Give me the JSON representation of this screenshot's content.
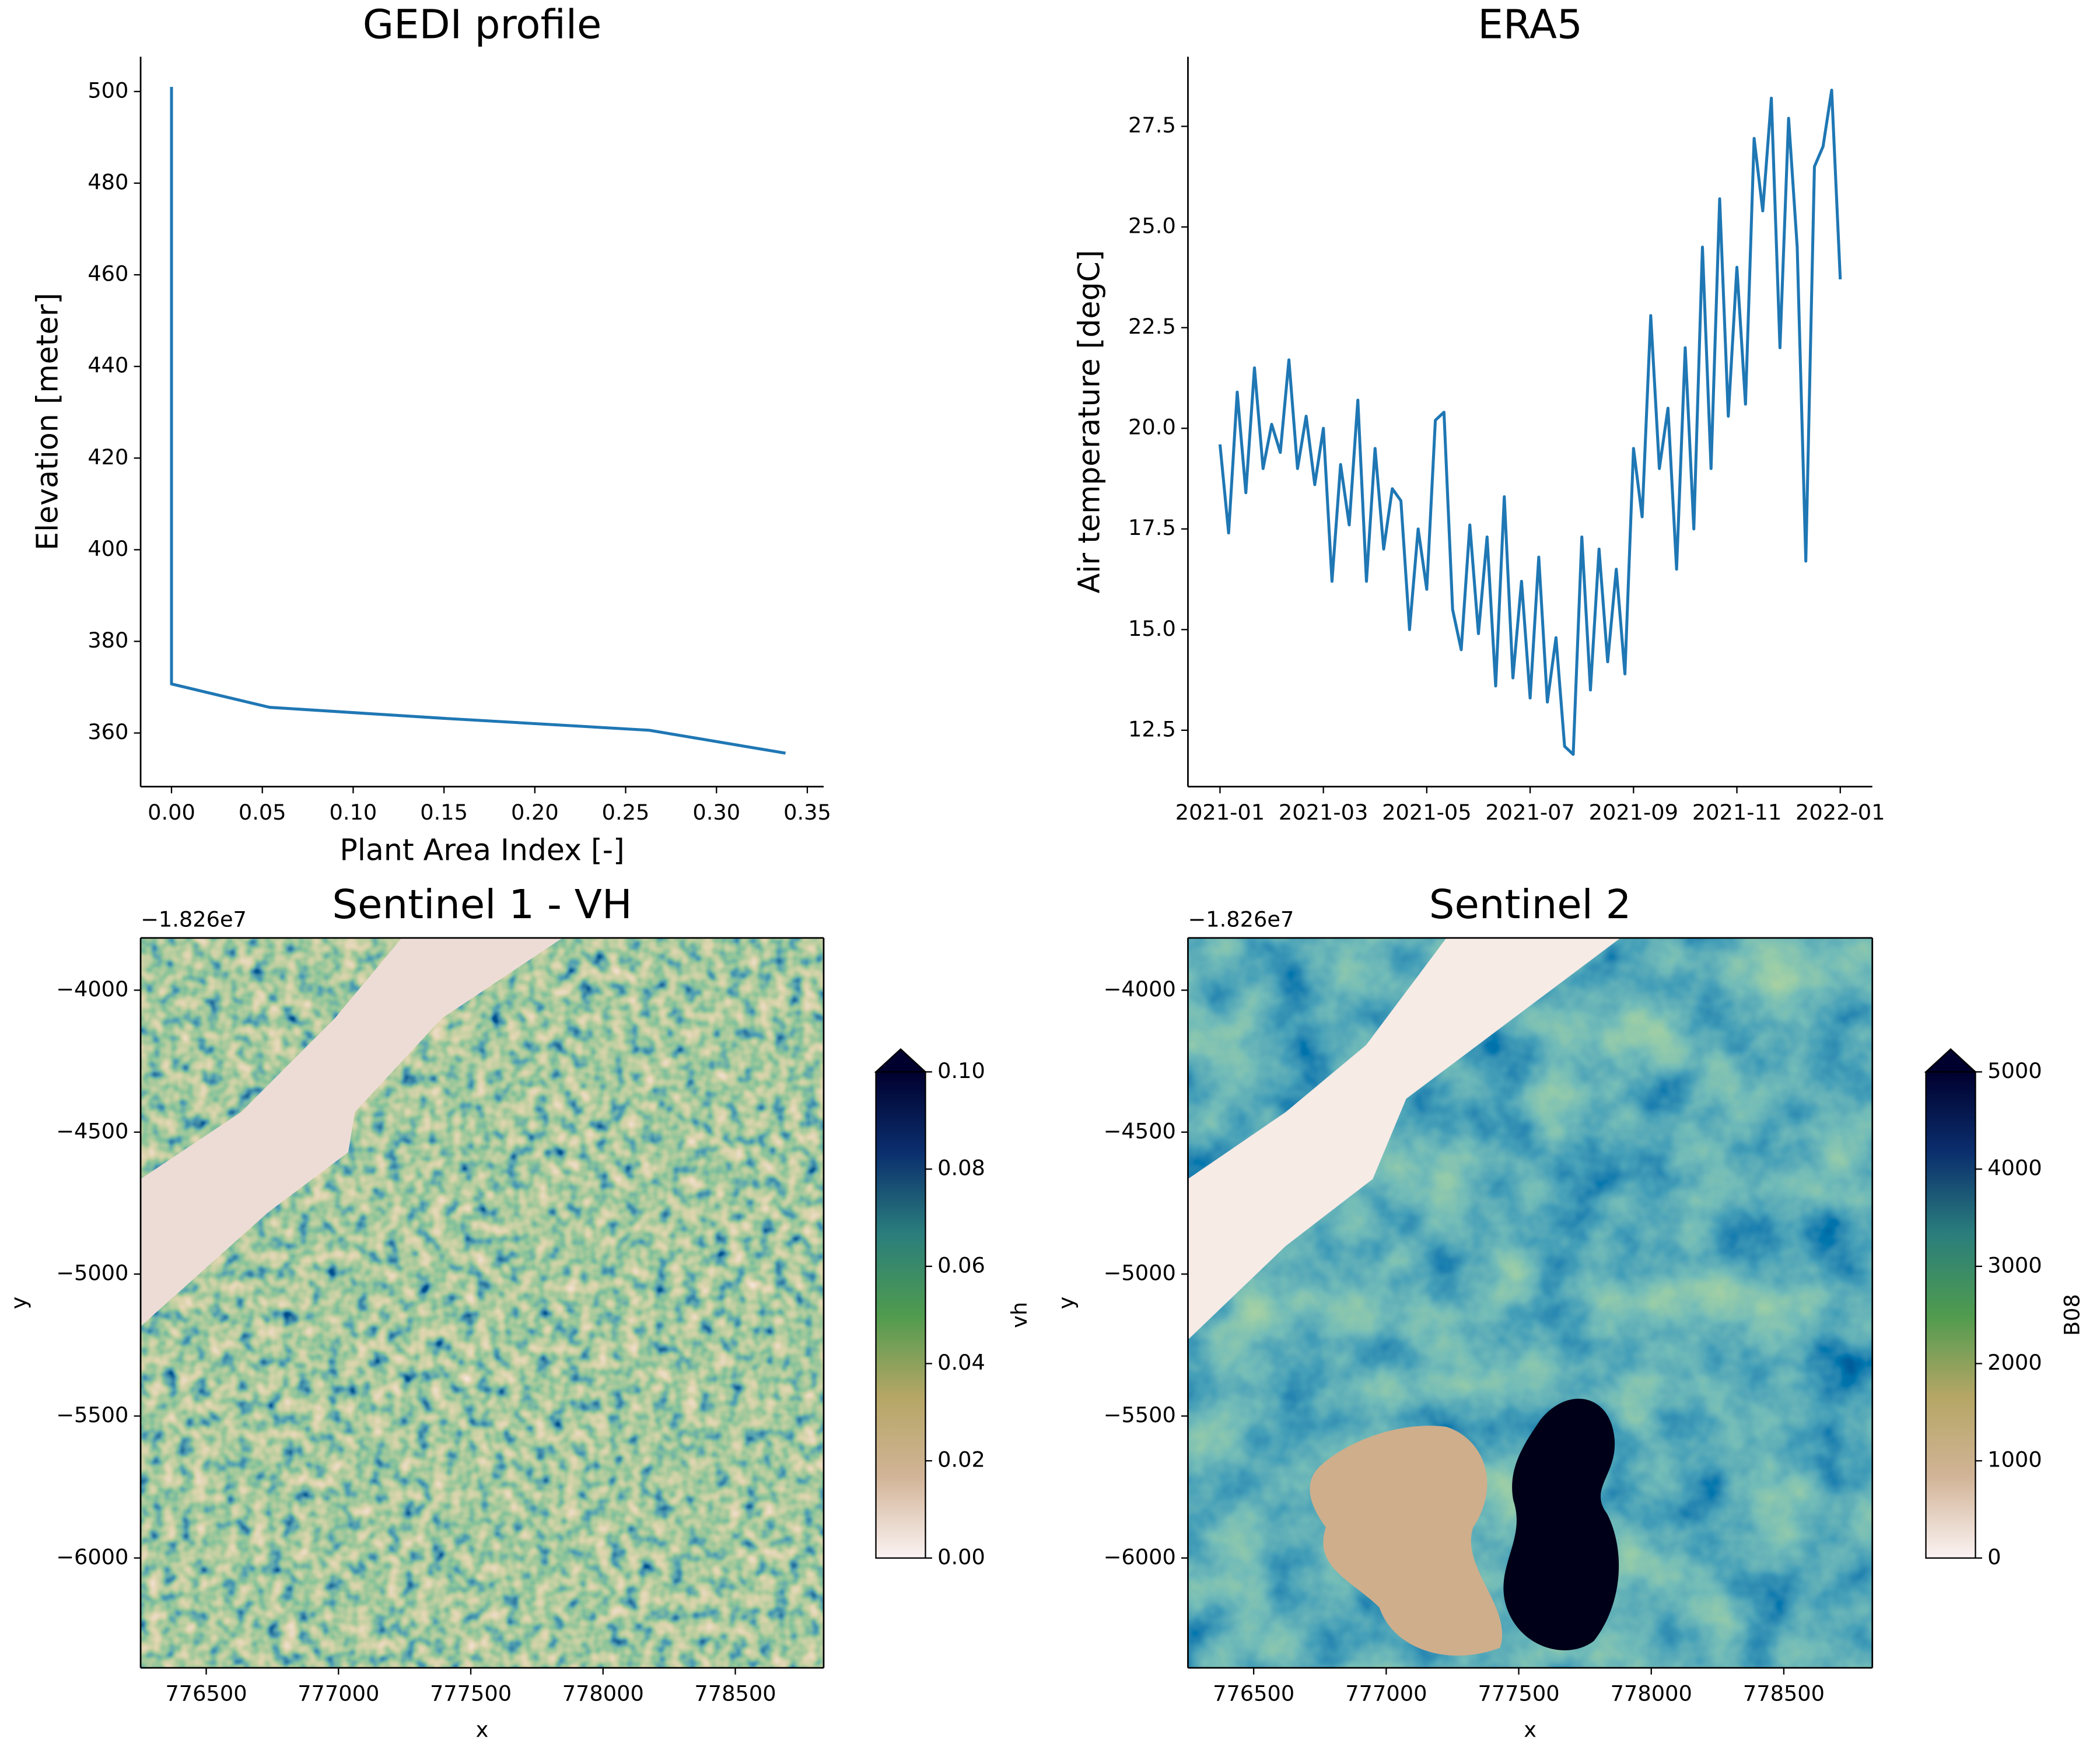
{
  "chart_data": [
    {
      "type": "line",
      "title": "GEDI profile",
      "x_label": "Plant Area Index [-]",
      "y_label": "Elevation [meter]",
      "x": [
        0,
        0,
        0.054,
        0.15,
        0.263,
        0.338
      ],
      "values": [
        501,
        370.7,
        365.6,
        363.2,
        360.6,
        355.6
      ],
      "color": "#1f77b4",
      "xlim": [
        -0.017,
        0.359
      ],
      "ylim": [
        348.3,
        507.6
      ],
      "xticks": [
        {
          "value": 0,
          "label": "0.00"
        },
        0.05,
        {
          "value": 0.1,
          "label": "0.10"
        },
        0.15,
        {
          "value": 0.2,
          "label": "0.20"
        },
        0.25,
        {
          "value": 0.3,
          "label": "0.30"
        },
        0.35
      ],
      "yticks": [
        360,
        380,
        400,
        420,
        440,
        460,
        480,
        500
      ]
    },
    {
      "type": "line",
      "title": "ERA5",
      "y_label": "Air temperature [degC]",
      "x": [
        0,
        0.1667,
        0.3333,
        0.5,
        0.6667,
        0.8333,
        1,
        1.1667,
        1.3333,
        1.5,
        1.6667,
        1.8333,
        2,
        2.1667,
        2.3333,
        2.5,
        2.6667,
        2.8333,
        3,
        3.1667,
        3.3333,
        3.5,
        3.6667,
        3.8333,
        4,
        4.1667,
        4.3333,
        4.5,
        4.6667,
        4.8333,
        5,
        5.1667,
        5.3333,
        5.5,
        5.6667,
        5.8333,
        6,
        6.1667,
        6.3333,
        6.5,
        6.6667,
        6.8333,
        7,
        7.1667,
        7.3333,
        7.5,
        7.6667,
        7.8333,
        8,
        8.1667,
        8.3333,
        8.5,
        8.6667,
        8.8333,
        9,
        9.1667,
        9.3333,
        9.5,
        9.6667,
        9.8333,
        10,
        10.1667,
        10.3333,
        10.5,
        10.6667,
        10.8333,
        11,
        11.1667,
        11.3333,
        11.5,
        11.6667,
        11.8333,
        12
      ],
      "values": [
        19.6,
        17.4,
        20.9,
        18.4,
        21.5,
        19.0,
        20.1,
        19.4,
        21.7,
        19.0,
        20.3,
        18.6,
        20.0,
        16.2,
        19.1,
        17.6,
        20.7,
        16.2,
        19.5,
        17.0,
        18.5,
        18.2,
        15.0,
        17.5,
        16.0,
        20.2,
        20.4,
        15.5,
        14.5,
        17.6,
        14.9,
        17.3,
        13.6,
        18.3,
        13.8,
        16.2,
        13.3,
        16.8,
        13.2,
        14.8,
        12.1,
        11.9,
        17.3,
        13.5,
        17.0,
        14.2,
        16.5,
        13.9,
        19.5,
        17.8,
        22.8,
        19.0,
        20.5,
        16.5,
        22.0,
        17.5,
        24.5,
        19.0,
        25.7,
        20.3,
        24.0,
        20.6,
        27.2,
        25.4,
        28.2,
        22.0,
        27.7,
        24.5,
        16.7,
        26.5,
        27.0,
        28.4,
        23.7
      ],
      "color": "#1f77b4",
      "xlim": [
        -0.62,
        12.62
      ],
      "ylim": [
        11.1,
        29.23
      ],
      "xticks": [
        {
          "value": 0,
          "label": "2021-01"
        },
        {
          "value": 2,
          "label": "2021-03"
        },
        {
          "value": 4,
          "label": "2021-05"
        },
        {
          "value": 6,
          "label": "2021-07"
        },
        {
          "value": 8,
          "label": "2021-09"
        },
        {
          "value": 10,
          "label": "2021-11"
        },
        {
          "value": 12,
          "label": "2022-01"
        }
      ],
      "yticks": [
        12.5,
        {
          "value": 15,
          "label": "15.0"
        },
        17.5,
        {
          "value": 20,
          "label": "20.0"
        },
        22.5,
        {
          "value": 25,
          "label": "25.0"
        },
        27.5
      ]
    },
    {
      "type": "image",
      "title": "Sentinel 1 - VH",
      "x_label": "x",
      "y_label": "y",
      "offset_text": "−1.826e7",
      "scene": "s1",
      "xlim": [
        776252,
        778834
      ],
      "ylim": [
        -6387,
        -3816
      ],
      "xticks": [
        776500,
        777000,
        777500,
        778000,
        778500
      ],
      "yticks": [
        {
          "value": -4000,
          "label": "−4000"
        },
        {
          "value": -4500,
          "label": "−4500"
        },
        {
          "value": -5000,
          "label": "−5000"
        },
        {
          "value": -5500,
          "label": "−5500"
        },
        {
          "value": -6000,
          "label": "−6000"
        }
      ],
      "colorbar_label": "vh",
      "clim": [
        0,
        0.1
      ],
      "extend": "max",
      "cticks": [
        {
          "value": 0,
          "label": "0.00"
        },
        {
          "value": 0.02,
          "label": "0.02"
        },
        {
          "value": 0.04,
          "label": "0.04"
        },
        {
          "value": 0.06,
          "label": "0.06"
        },
        {
          "value": 0.08,
          "label": "0.08"
        },
        {
          "value": 0.1,
          "label": "0.10"
        }
      ],
      "colormap": [
        "#fbf3f3",
        "#d2b497",
        "#b5a665",
        "#4f9b4e",
        "#2a7e7c",
        "#0b2f6e",
        "#00002e"
      ]
    },
    {
      "type": "image",
      "title": "Sentinel 2",
      "x_label": "x",
      "y_label": "y",
      "offset_text": "−1.826e7",
      "scene": "s2",
      "xlim": [
        776252,
        778834
      ],
      "ylim": [
        -6387,
        -3816
      ],
      "xticks": [
        776500,
        777000,
        777500,
        778000,
        778500
      ],
      "yticks": [
        {
          "value": -4000,
          "label": "−4000"
        },
        {
          "value": -4500,
          "label": "−4500"
        },
        {
          "value": -5000,
          "label": "−5000"
        },
        {
          "value": -5500,
          "label": "−5500"
        },
        {
          "value": -6000,
          "label": "−6000"
        }
      ],
      "colorbar_label": "B08",
      "clim": [
        0,
        5000
      ],
      "extend": "max",
      "cticks": [
        0,
        1000,
        2000,
        3000,
        4000,
        5000
      ],
      "colormap": [
        "#fbf3f3",
        "#d2b497",
        "#b5a665",
        "#4f9b4e",
        "#2a7e7c",
        "#0b2f6e",
        "#00002e"
      ]
    }
  ]
}
